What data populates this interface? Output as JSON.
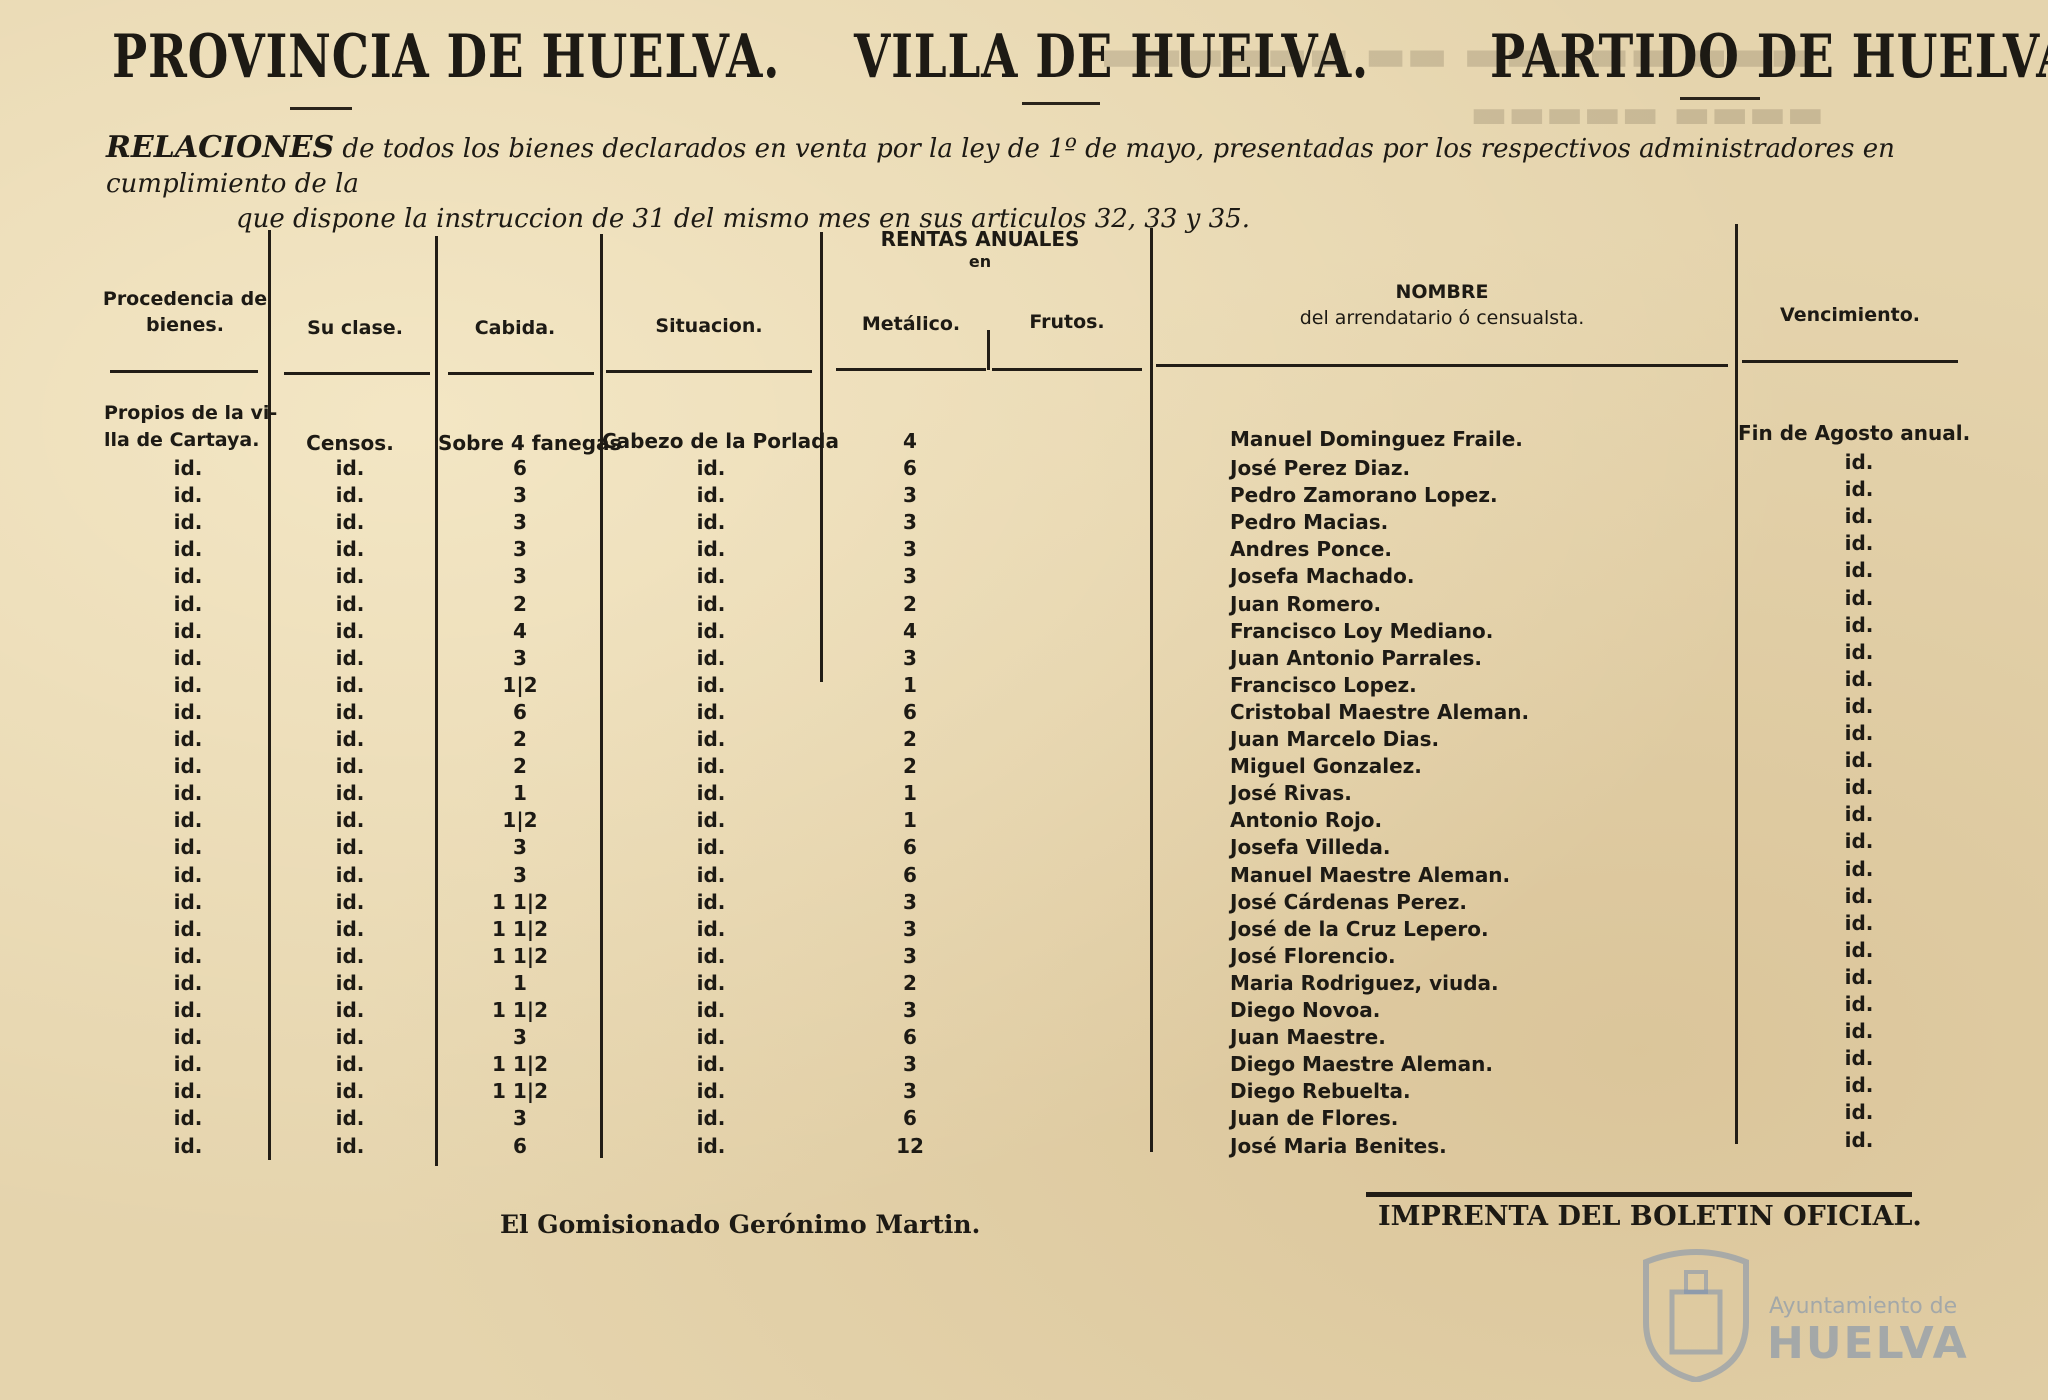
{
  "header": {
    "provincia": "PROVINCIA DE HUELVA.",
    "villa": "VILLA DE HUELVA.",
    "partido": "PARTIDO DE HUELVA."
  },
  "intro": {
    "lead": "RELACIONES",
    "line1": " de todos los bienes declarados en venta por la ley de 1º de mayo, presentadas por los respectivos administradores en cumplimiento de la",
    "line2": "que dispone la instruccion de 31 del mismo mes en sus articulos 32, 33 y 35."
  },
  "columns": {
    "procedencia": "Procedencia de bienes.",
    "clase": "Su clase.",
    "cabida": "Cabida.",
    "situacion": "Situacion.",
    "rentas": "RENTAS ANUALES",
    "rentas_en": "en",
    "metalico": "Metálico.",
    "frutos": "Frutos.",
    "nombre": "NOMBRE",
    "nombre_sub": "del arrendatario ó censualsta.",
    "vencimiento": "Vencimiento."
  },
  "first_row": {
    "proc_line1": "Propios de la vi-",
    "proc_line2": "lla de Cartaya.",
    "clase": "Censos.",
    "cabida": "Sobre 4 fanegas",
    "situacion": "Cabezo de la Porlada",
    "metalico": "4",
    "nombre": "Manuel Dominguez Fraile.",
    "vencimiento": "Fin de Agosto anual."
  },
  "rows": [
    {
      "proc": "id.",
      "clase": "id.",
      "cabida": "6",
      "sit": "id.",
      "met": "6",
      "nombre": "José Perez Diaz.",
      "venc": "id."
    },
    {
      "proc": "id.",
      "clase": "id.",
      "cabida": "3",
      "sit": "id.",
      "met": "3",
      "nombre": "Pedro Zamorano Lopez.",
      "venc": "id."
    },
    {
      "proc": "id.",
      "clase": "id.",
      "cabida": "3",
      "sit": "id.",
      "met": "3",
      "nombre": "Pedro Macias.",
      "venc": "id."
    },
    {
      "proc": "id.",
      "clase": "id.",
      "cabida": "3",
      "sit": "id.",
      "met": "3",
      "nombre": "Andres Ponce.",
      "venc": "id."
    },
    {
      "proc": "id.",
      "clase": "id.",
      "cabida": "3",
      "sit": "id.",
      "met": "3",
      "nombre": "Josefa Machado.",
      "venc": "id."
    },
    {
      "proc": "id.",
      "clase": "id.",
      "cabida": "2",
      "sit": "id.",
      "met": "2",
      "nombre": "Juan Romero.",
      "venc": "id."
    },
    {
      "proc": "id.",
      "clase": "id.",
      "cabida": "4",
      "sit": "id.",
      "met": "4",
      "nombre": "Francisco Loy Mediano.",
      "venc": "id."
    },
    {
      "proc": "id.",
      "clase": "id.",
      "cabida": "3",
      "sit": "id.",
      "met": "3",
      "nombre": "Juan Antonio Parrales.",
      "venc": "id."
    },
    {
      "proc": "id.",
      "clase": "id.",
      "cabida": "1|2",
      "sit": "id.",
      "met": "1",
      "nombre": "Francisco Lopez.",
      "venc": "id."
    },
    {
      "proc": "id.",
      "clase": "id.",
      "cabida": "6",
      "sit": "id.",
      "met": "6",
      "nombre": "Cristobal Maestre Aleman.",
      "venc": "id."
    },
    {
      "proc": "id.",
      "clase": "id.",
      "cabida": "2",
      "sit": "id.",
      "met": "2",
      "nombre": "Juan Marcelo Dias.",
      "venc": "id."
    },
    {
      "proc": "id.",
      "clase": "id.",
      "cabida": "2",
      "sit": "id.",
      "met": "2",
      "nombre": "Miguel Gonzalez.",
      "venc": "id."
    },
    {
      "proc": "id.",
      "clase": "id.",
      "cabida": "1",
      "sit": "id.",
      "met": "1",
      "nombre": "José Rivas.",
      "venc": "id."
    },
    {
      "proc": "id.",
      "clase": "id.",
      "cabida": "1|2",
      "sit": "id.",
      "met": "1",
      "nombre": "Antonio Rojo.",
      "venc": "id."
    },
    {
      "proc": "id.",
      "clase": "id.",
      "cabida": "3",
      "sit": "id.",
      "met": "6",
      "nombre": "Josefa Villeda.",
      "venc": "id."
    },
    {
      "proc": "id.",
      "clase": "id.",
      "cabida": "3",
      "sit": "id.",
      "met": "6",
      "nombre": "Manuel Maestre Aleman.",
      "venc": "id."
    },
    {
      "proc": "id.",
      "clase": "id.",
      "cabida": "1 1|2",
      "sit": "id.",
      "met": "3",
      "nombre": "José Cárdenas Perez.",
      "venc": "id."
    },
    {
      "proc": "id.",
      "clase": "id.",
      "cabida": "1 1|2",
      "sit": "id.",
      "met": "3",
      "nombre": "José de la Cruz Lepero.",
      "venc": "id."
    },
    {
      "proc": "id.",
      "clase": "id.",
      "cabida": "1 1|2",
      "sit": "id.",
      "met": "3",
      "nombre": "José Florencio.",
      "venc": "id."
    },
    {
      "proc": "id.",
      "clase": "id.",
      "cabida": "1",
      "sit": "id.",
      "met": "2",
      "nombre": "Maria Rodriguez, viuda.",
      "venc": "id."
    },
    {
      "proc": "id.",
      "clase": "id.",
      "cabida": "1 1|2",
      "sit": "id.",
      "met": "3",
      "nombre": "Diego Novoa.",
      "venc": "id."
    },
    {
      "proc": "id.",
      "clase": "id.",
      "cabida": "3",
      "sit": "id.",
      "met": "6",
      "nombre": "Juan Maestre.",
      "venc": "id."
    },
    {
      "proc": "id.",
      "clase": "id.",
      "cabida": "1 1|2",
      "sit": "id.",
      "met": "3",
      "nombre": "Diego Maestre Aleman.",
      "venc": "id."
    },
    {
      "proc": "id.",
      "clase": "id.",
      "cabida": "1 1|2",
      "sit": "id.",
      "met": "3",
      "nombre": "Diego Rebuelta.",
      "venc": "id."
    },
    {
      "proc": "id.",
      "clase": "id.",
      "cabida": "3",
      "sit": "id.",
      "met": "6",
      "nombre": "Juan de Flores.",
      "venc": "id."
    },
    {
      "proc": "id.",
      "clase": "id.",
      "cabida": "6",
      "sit": "id.",
      "met": "12",
      "nombre": "José Maria Benites.",
      "venc": "id."
    }
  ],
  "footer": {
    "comisionado": "El Gomisionado Gerónimo Martin.",
    "imprenta": "IMPRENTA DEL BOLETIN OFICIAL."
  },
  "watermark": {
    "line1": "Ayuntamiento de",
    "line2": "HUELVA"
  }
}
